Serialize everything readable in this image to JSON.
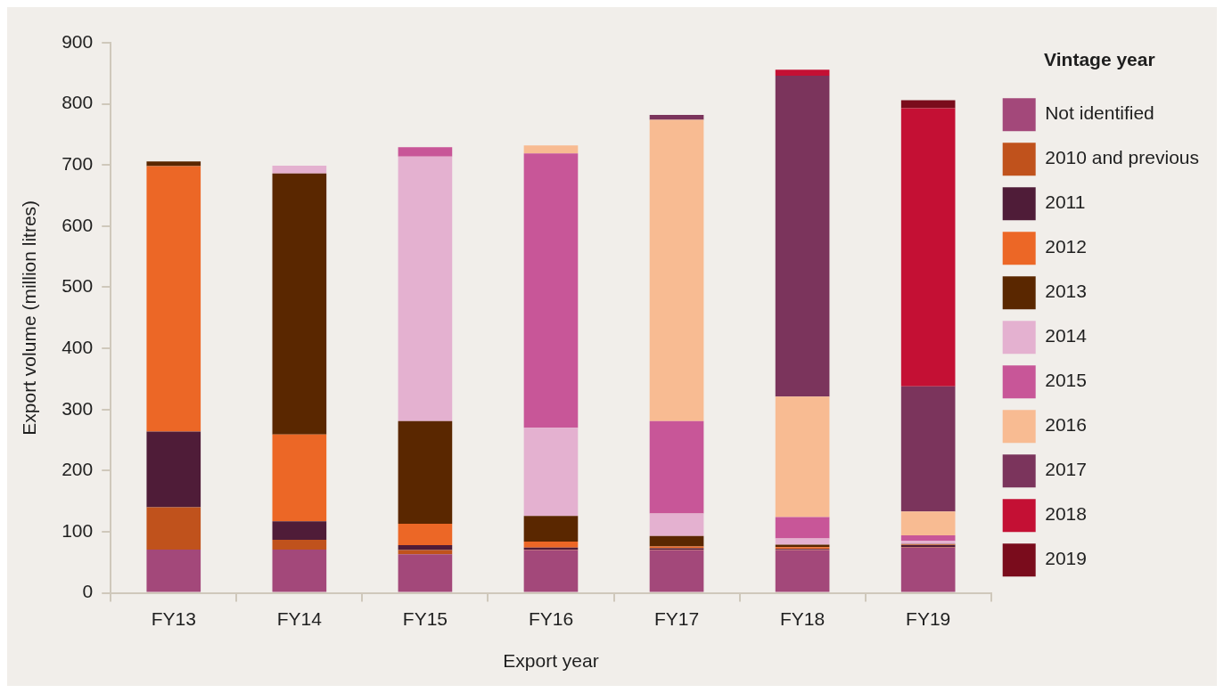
{
  "chart_data": {
    "type": "bar",
    "stacked": true,
    "xlabel": "Export year",
    "ylabel": "Export volume (million litres)",
    "legend_title": "Vintage year",
    "legend": "right",
    "grid": false,
    "categories": [
      "FY13",
      "FY14",
      "FY15",
      "FY16",
      "FY17",
      "FY18",
      "FY19"
    ],
    "ylim": [
      0,
      900
    ],
    "yticks": [
      0,
      100,
      200,
      300,
      400,
      500,
      600,
      700,
      800,
      900
    ],
    "series": [
      {
        "name": "Not identified",
        "color": "#a3487a",
        "values": [
          71,
          71,
          63,
          70,
          70,
          70,
          74
        ]
      },
      {
        "name": "2010 and previous",
        "color": "#c0521c",
        "values": [
          69,
          16,
          7,
          1,
          1,
          1,
          1
        ]
      },
      {
        "name": "2011",
        "color": "#4f1c38",
        "values": [
          124,
          30,
          8,
          3,
          2,
          1,
          3
        ]
      },
      {
        "name": "2012",
        "color": "#ec6726",
        "values": [
          434,
          142,
          35,
          10,
          3,
          3,
          1
        ]
      },
      {
        "name": "2013",
        "color": "#5a2700",
        "values": [
          8,
          427,
          168,
          42,
          17,
          4,
          1
        ]
      },
      {
        "name": "2014",
        "color": "#e4b1d0",
        "values": [
          null,
          13,
          433,
          144,
          37,
          10,
          5
        ]
      },
      {
        "name": "2015",
        "color": "#c85698",
        "values": [
          null,
          null,
          15,
          449,
          151,
          35,
          9
        ]
      },
      {
        "name": "2016",
        "color": "#f8bb92",
        "values": [
          null,
          null,
          null,
          13,
          493,
          197,
          39
        ]
      },
      {
        "name": "2017",
        "color": "#7b345c",
        "values": [
          null,
          null,
          null,
          null,
          8,
          525,
          205
        ]
      },
      {
        "name": "2018",
        "color": "#c41034",
        "values": [
          null,
          null,
          null,
          null,
          null,
          10,
          455
        ]
      },
      {
        "name": "2019",
        "color": "#7a0c1c",
        "values": [
          null,
          null,
          null,
          null,
          null,
          null,
          13
        ]
      }
    ]
  }
}
